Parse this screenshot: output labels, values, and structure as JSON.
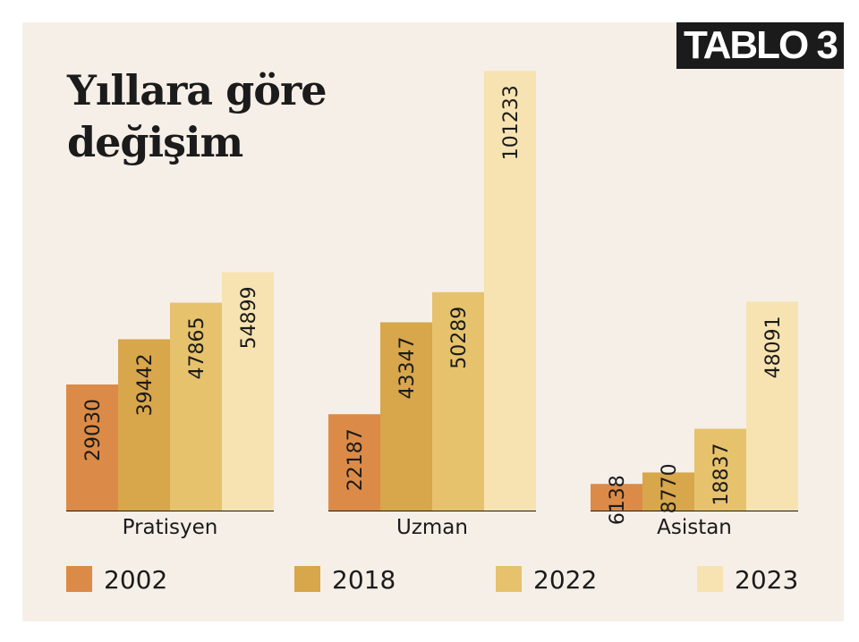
{
  "badge": "TABLO 3",
  "title": "Yıllara göre değişim",
  "colors": {
    "background": "#f6efe8",
    "series": [
      "#db8b47",
      "#d8a64b",
      "#e6c26d",
      "#f7e3b1"
    ]
  },
  "chart_data": {
    "type": "bar",
    "title": "Yıllara göre değişim",
    "categories": [
      "Pratisyen",
      "Uzman",
      "Asistan"
    ],
    "series": [
      {
        "name": "2002",
        "values": [
          29030,
          22187,
          6138
        ]
      },
      {
        "name": "2018",
        "values": [
          39442,
          43347,
          8770
        ]
      },
      {
        "name": "2022",
        "values": [
          47865,
          50289,
          18837
        ]
      },
      {
        "name": "2023",
        "values": [
          54899,
          101233,
          48091
        ]
      }
    ],
    "ylim": [
      0,
      105000
    ],
    "grid": false,
    "legend": "bottom",
    "xlabel": "",
    "ylabel": ""
  }
}
